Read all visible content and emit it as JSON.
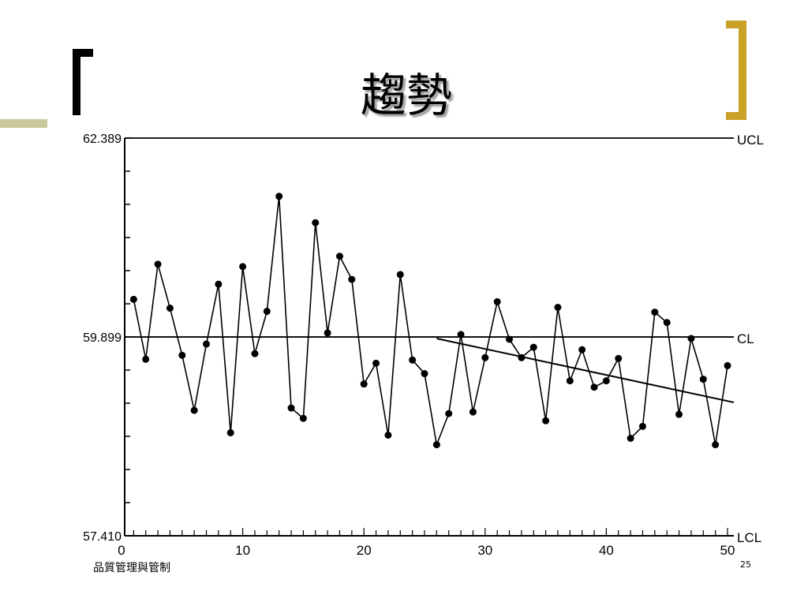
{
  "slide": {
    "title": "趨勢",
    "footer": "品質管理與管制",
    "page_number": "25",
    "accent_color": "#c9a227"
  },
  "chart_data": {
    "type": "line",
    "title": "",
    "xlabel": "",
    "ylabel": "",
    "xlim": [
      0,
      50
    ],
    "ylim": [
      57.41,
      62.389
    ],
    "x_ticks": [
      0,
      10,
      20,
      30,
      40,
      50
    ],
    "y_tick_labels": [
      "62.389",
      "59.899",
      "57.410"
    ],
    "control_lines": [
      {
        "name": "UCL",
        "value": 62.389
      },
      {
        "name": "CL",
        "value": 59.899
      },
      {
        "name": "LCL",
        "value": 57.41
      }
    ],
    "series": [
      {
        "x": [
          1,
          2,
          3,
          4,
          5,
          6,
          7,
          8,
          9,
          10,
          11,
          12,
          13,
          14,
          15,
          16,
          17,
          18,
          19,
          20,
          21,
          22,
          23,
          24,
          25,
          26,
          27,
          28,
          29,
          30,
          31,
          32,
          33,
          34,
          35,
          36,
          37,
          38,
          39,
          40,
          41,
          42,
          43,
          44,
          45,
          46,
          47,
          48,
          49,
          50
        ],
        "values": [
          60.37,
          59.62,
          60.81,
          60.26,
          59.67,
          58.98,
          59.81,
          60.56,
          58.7,
          60.78,
          59.69,
          60.22,
          61.66,
          59.01,
          58.88,
          61.33,
          59.95,
          60.91,
          60.62,
          59.31,
          59.57,
          58.67,
          60.68,
          59.61,
          59.44,
          58.55,
          58.94,
          59.93,
          58.96,
          59.64,
          60.34,
          59.87,
          59.64,
          59.77,
          58.85,
          60.27,
          59.35,
          59.74,
          59.27,
          59.35,
          59.63,
          58.63,
          58.78,
          60.21,
          60.08,
          58.93,
          59.88,
          59.37,
          58.55,
          59.54
        ]
      }
    ],
    "trend_line": {
      "x": [
        26,
        50
      ],
      "values": [
        59.88,
        59.09
      ]
    }
  }
}
